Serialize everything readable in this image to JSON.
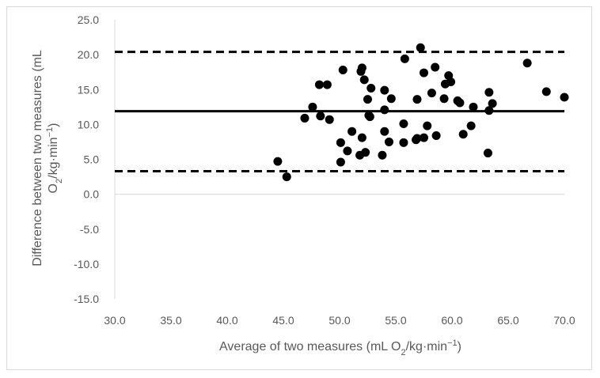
{
  "chart_data": {
    "type": "scatter",
    "title": "",
    "xlabel": "Average of two measures (mL O2/kg·min−1)",
    "ylabel": "Difference between two measures (mL O2/kg·min−1)",
    "xlim": [
      30,
      70
    ],
    "ylim": [
      -15,
      25
    ],
    "x_ticks": [
      "30.0",
      "35.0",
      "40.0",
      "45.0",
      "50.0",
      "55.0",
      "60.0",
      "65.0",
      "70.0"
    ],
    "y_ticks": [
      "25.0",
      "20.0",
      "15.0",
      "10.0",
      "5.0",
      "0.0",
      "-5.0",
      "-10.0",
      "-15.0"
    ],
    "grid": false,
    "legend": "none",
    "mean_difference": 11.9,
    "upper_limit_of_agreement": 20.4,
    "lower_limit_of_agreement": 3.3,
    "points": [
      {
        "x": 44.5,
        "y": 4.7
      },
      {
        "x": 45.3,
        "y": 2.5
      },
      {
        "x": 46.9,
        "y": 10.9
      },
      {
        "x": 47.6,
        "y": 12.5
      },
      {
        "x": 48.2,
        "y": 15.7
      },
      {
        "x": 48.3,
        "y": 11.2
      },
      {
        "x": 48.9,
        "y": 15.7
      },
      {
        "x": 49.1,
        "y": 10.7
      },
      {
        "x": 50.1,
        "y": 4.6
      },
      {
        "x": 50.1,
        "y": 7.4
      },
      {
        "x": 50.3,
        "y": 17.8
      },
      {
        "x": 50.7,
        "y": 6.2
      },
      {
        "x": 51.1,
        "y": 9.0
      },
      {
        "x": 51.8,
        "y": 5.6
      },
      {
        "x": 51.9,
        "y": 17.6
      },
      {
        "x": 52.0,
        "y": 8.1
      },
      {
        "x": 52.0,
        "y": 18.1
      },
      {
        "x": 52.2,
        "y": 16.4
      },
      {
        "x": 52.3,
        "y": 6.0
      },
      {
        "x": 52.5,
        "y": 13.6
      },
      {
        "x": 52.6,
        "y": 11.3
      },
      {
        "x": 52.7,
        "y": 11.1
      },
      {
        "x": 52.8,
        "y": 15.2
      },
      {
        "x": 53.8,
        "y": 5.6
      },
      {
        "x": 54.0,
        "y": 9.0
      },
      {
        "x": 54.0,
        "y": 12.1
      },
      {
        "x": 54.0,
        "y": 14.9
      },
      {
        "x": 54.4,
        "y": 7.5
      },
      {
        "x": 54.6,
        "y": 13.7
      },
      {
        "x": 55.7,
        "y": 7.4
      },
      {
        "x": 55.7,
        "y": 10.1
      },
      {
        "x": 55.8,
        "y": 19.4
      },
      {
        "x": 56.8,
        "y": 7.8
      },
      {
        "x": 56.9,
        "y": 8.0
      },
      {
        "x": 56.9,
        "y": 13.6
      },
      {
        "x": 57.2,
        "y": 21.0
      },
      {
        "x": 57.5,
        "y": 8.1
      },
      {
        "x": 57.5,
        "y": 17.4
      },
      {
        "x": 57.8,
        "y": 9.8
      },
      {
        "x": 58.2,
        "y": 14.5
      },
      {
        "x": 58.5,
        "y": 18.2
      },
      {
        "x": 58.6,
        "y": 8.4
      },
      {
        "x": 59.3,
        "y": 13.7
      },
      {
        "x": 59.4,
        "y": 15.8
      },
      {
        "x": 59.7,
        "y": 17.0
      },
      {
        "x": 59.9,
        "y": 16.1
      },
      {
        "x": 60.5,
        "y": 13.4
      },
      {
        "x": 60.7,
        "y": 13.1
      },
      {
        "x": 61.0,
        "y": 8.6
      },
      {
        "x": 61.7,
        "y": 9.8
      },
      {
        "x": 61.9,
        "y": 12.5
      },
      {
        "x": 63.2,
        "y": 5.9
      },
      {
        "x": 63.3,
        "y": 12.0
      },
      {
        "x": 63.3,
        "y": 14.6
      },
      {
        "x": 63.6,
        "y": 13.0
      },
      {
        "x": 66.7,
        "y": 18.8
      },
      {
        "x": 68.4,
        "y": 14.7
      },
      {
        "x": 70.0,
        "y": 13.9
      }
    ]
  }
}
